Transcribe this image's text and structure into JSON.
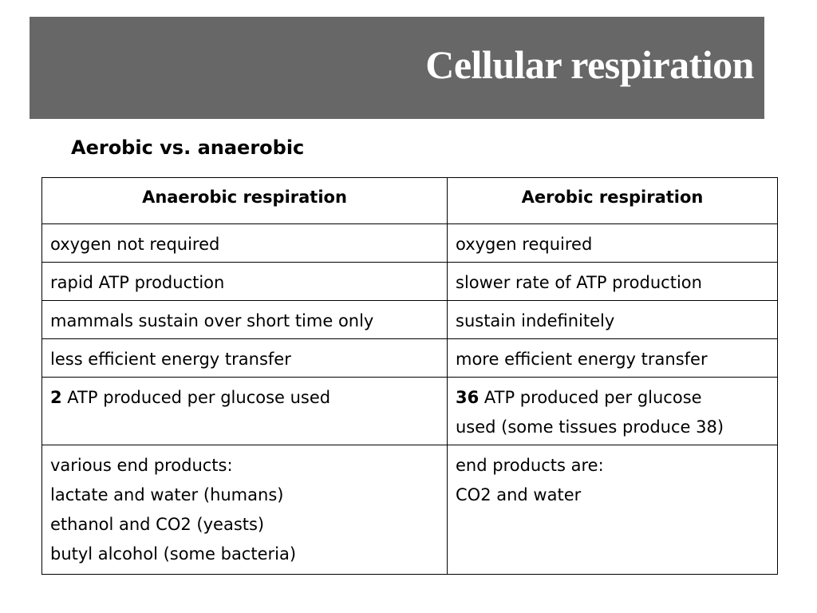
{
  "slide": {
    "title": "Cellular respiration",
    "subtitle": "Aerobic vs. anaerobic"
  },
  "table": {
    "headers": {
      "anaerobic": "Anaerobic respiration",
      "aerobic": "Aerobic respiration"
    },
    "rows": [
      {
        "anaerobic": "oxygen not required",
        "aerobic": "oxygen required"
      },
      {
        "anaerobic": "rapid ATP production",
        "aerobic": "slower rate of ATP production"
      },
      {
        "anaerobic": "mammals sustain over short time only",
        "aerobic": "sustain indefinitely"
      },
      {
        "anaerobic": "less efficient energy transfer",
        "aerobic": "more efficient energy transfer"
      },
      {
        "anaerobic_number": "2",
        "anaerobic_text": " ATP produced per glucose used",
        "aerobic_number": "36",
        "aerobic_line1": " ATP produced per glucose",
        "aerobic_line2": "used (some tissues produce 38)"
      },
      {
        "anaerobic_lines": [
          "various end products:",
          "lactate and water (humans)",
          "ethanol and CO2 (yeasts)",
          "butyl alcohol (some bacteria)"
        ],
        "aerobic_lines": [
          "end products are:",
          "CO2 and water"
        ]
      }
    ]
  },
  "colors": {
    "title_bar": "#676767",
    "title_text": "#ffffff",
    "body_text": "#000000",
    "table_border": "#000000"
  }
}
